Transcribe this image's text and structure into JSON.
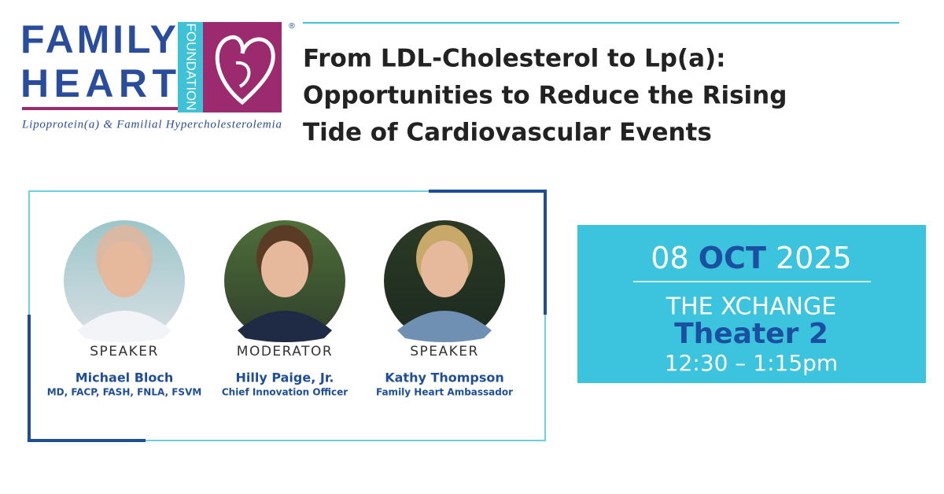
{
  "logo": {
    "line1": "FAMILY",
    "line2": "HEART",
    "vertical": "FOUNDATION",
    "mark": "®",
    "tagline": "Lipoprotein(a) & Familial Hypercholesterolemia"
  },
  "title_lines": [
    "From LDL-Cholesterol to Lp(a):",
    "Opportunities to Reduce the Rising",
    "Tide of Cardiovascular Events"
  ],
  "people": [
    {
      "role": "SPEAKER",
      "name": "Michael Bloch",
      "detail": "MD, FACP, FASH, FNLA, FSVM"
    },
    {
      "role": "MODERATOR",
      "name": "Hilly Paige, Jr.",
      "detail": "Chief Innovation Officer"
    },
    {
      "role": "SPEAKER",
      "name": "Kathy Thompson",
      "detail": "Family Heart Ambassador"
    }
  ],
  "event": {
    "day": "08",
    "month": "OCT",
    "year": "2025",
    "venue": "THE XCHANGE",
    "room": "Theater 2",
    "time": "12:30 – 1:15pm"
  }
}
